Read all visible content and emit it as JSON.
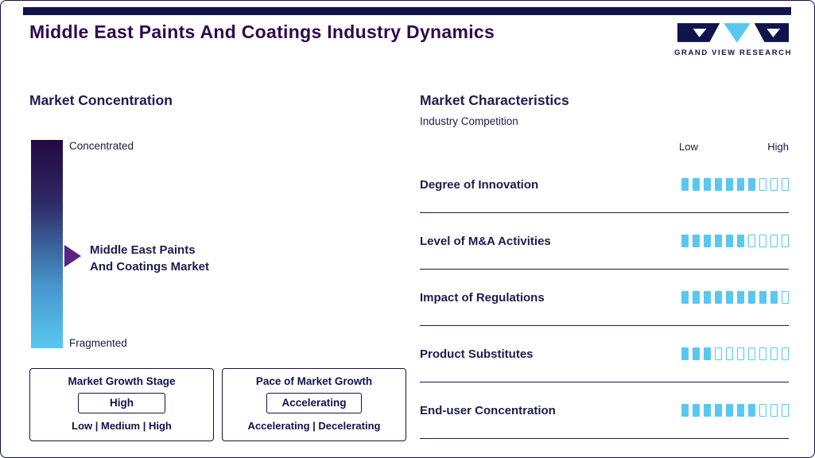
{
  "page": {
    "title": "Middle East Paints And Coatings Industry Dynamics"
  },
  "logo": {
    "text": "GRAND VIEW RESEARCH"
  },
  "left": {
    "heading": "Market Concentration",
    "scale_top": "Concentrated",
    "scale_bottom": "Fragmented",
    "marker_label_line1": "Middle East Paints",
    "marker_label_line2": "And Coatings Market",
    "growth_stage": {
      "title": "Market Growth Stage",
      "value": "High",
      "options": "Low | Medium | High"
    },
    "growth_pace": {
      "title": "Pace of Market Growth",
      "value": "Accelerating",
      "options": "Accelerating | Decelerating"
    }
  },
  "right": {
    "heading": "Market Characteristics",
    "subheading": "Industry Competition",
    "low_label": "Low",
    "high_label": "High"
  },
  "chart_data": {
    "type": "bar",
    "title": "Market Characteristics - Industry Competition",
    "categories": [
      "Degree of Innovation",
      "Level of M&A Activities",
      "Impact of Regulations",
      "Product Substitutes",
      "End-user Concentration"
    ],
    "values": [
      7,
      6,
      9,
      3,
      7
    ],
    "scale_max": 10,
    "scale_labels": [
      "Low",
      "High"
    ],
    "legend_position": "none",
    "grid": false
  },
  "colors": {
    "navy": "#12124d",
    "title_purple": "#30084e",
    "cyan": "#58c8f0",
    "marker_purple": "#5b2383",
    "gradient_top": "#230941",
    "gradient_bottom": "#58c8f0"
  }
}
